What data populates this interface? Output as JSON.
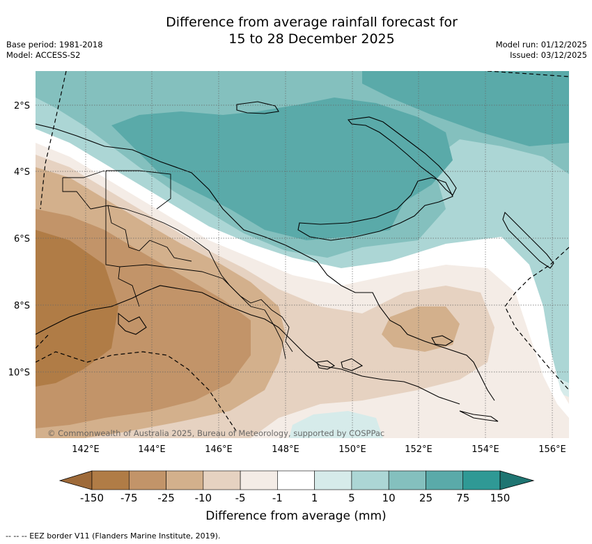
{
  "title_line1": "Difference from average rainfall forecast for",
  "title_line2": "15 to 28 December 2025",
  "meta": {
    "base_period": "Base period: 1981-2018",
    "model": "Model: ACCESS-S2",
    "model_run": "Model run: 01/12/2025",
    "issued": "Issued: 03/12/2025"
  },
  "map": {
    "lat_labels": [
      "2°S",
      "4°S",
      "6°S",
      "8°S",
      "10°S"
    ],
    "lon_labels": [
      "142°E",
      "144°E",
      "146°E",
      "148°E",
      "150°E",
      "152°E",
      "154°E",
      "156°E"
    ],
    "copyright": "© Commonwealth of Australia 2025, Bureau of Meteorology, supported by COSPPac"
  },
  "colorbar": {
    "ticks": [
      "-150",
      "-75",
      "-25",
      "-10",
      "-5",
      "-1",
      "1",
      "5",
      "10",
      "25",
      "75",
      "150"
    ],
    "colors": [
      "#9e6a39",
      "#b07c46",
      "#c29469",
      "#d3b08c",
      "#e6d2c1",
      "#f4ece6",
      "#ffffff",
      "#d6ebea",
      "#acd6d5",
      "#84c0be",
      "#5aaaa9",
      "#2f9995",
      "#1f7572"
    ],
    "label": "Difference from average (mm)"
  },
  "footnote": "--  --  -- EEZ border V11 (Flanders Marine Institute, 2019)."
}
